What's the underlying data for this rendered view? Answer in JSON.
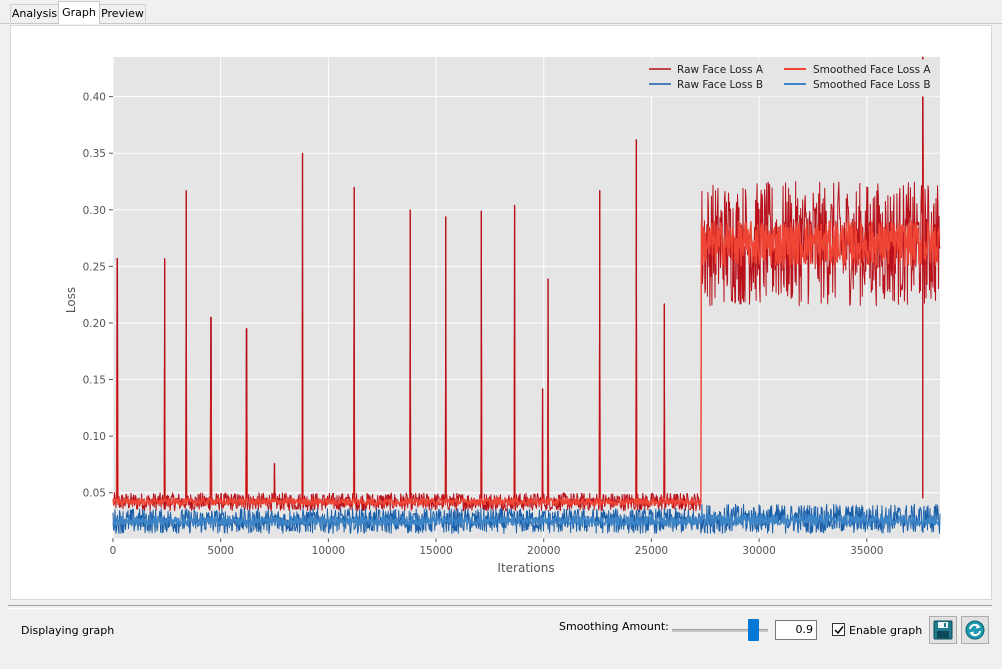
{
  "tabs": [
    {
      "label": "Analysis"
    },
    {
      "label": "Graph",
      "active": true
    },
    {
      "label": "Preview"
    }
  ],
  "status": "Displaying graph",
  "controls": {
    "smoothing_label": "Smoothing Amount:",
    "smoothing_value": "0.9",
    "enable_graph_label": "Enable graph",
    "enable_graph_checked": true,
    "save_icon": "save-icon",
    "refresh_icon": "refresh-icon"
  },
  "chart_data": {
    "type": "line",
    "xlabel": "Iterations",
    "ylabel": "Loss",
    "xlim": [
      0,
      38400
    ],
    "ylim": [
      0.01,
      0.435
    ],
    "xticks": [
      "0",
      "5000",
      "10000",
      "15000",
      "20000",
      "25000",
      "30000",
      "35000"
    ],
    "yticks": [
      "0.05",
      "0.10",
      "0.15",
      "0.20",
      "0.25",
      "0.30",
      "0.35",
      "0.40"
    ],
    "grid": true,
    "legend_position": "top-right",
    "colors": {
      "raw_a": "#b8111b",
      "smooth_a": "#ef4535",
      "raw_b": "#1a5fa8",
      "smooth_b": "#3d85c6",
      "background": "#e5e5e5"
    },
    "series": [
      {
        "name": "Raw Face Loss A",
        "color": "#b8111b",
        "segments": [
          {
            "x": [
              0,
              27300
            ],
            "center": 0.042,
            "spread": 0.008
          },
          {
            "x": [
              27300,
              38400
            ],
            "center": 0.27,
            "spread": 0.055
          }
        ],
        "spikes": [
          {
            "x": 200,
            "y": 0.257
          },
          {
            "x": 2400,
            "y": 0.257
          },
          {
            "x": 3400,
            "y": 0.317
          },
          {
            "x": 4550,
            "y": 0.205
          },
          {
            "x": 6200,
            "y": 0.195
          },
          {
            "x": 7500,
            "y": 0.076
          },
          {
            "x": 8800,
            "y": 0.35
          },
          {
            "x": 11200,
            "y": 0.32
          },
          {
            "x": 13800,
            "y": 0.3
          },
          {
            "x": 15450,
            "y": 0.294
          },
          {
            "x": 17100,
            "y": 0.299
          },
          {
            "x": 18650,
            "y": 0.304
          },
          {
            "x": 19950,
            "y": 0.142
          },
          {
            "x": 20200,
            "y": 0.239
          },
          {
            "x": 22600,
            "y": 0.317
          },
          {
            "x": 24300,
            "y": 0.362
          },
          {
            "x": 25600,
            "y": 0.217
          },
          {
            "x": 37600,
            "y": 0.435
          }
        ]
      },
      {
        "name": "Raw Face Loss B",
        "color": "#1a5fa8",
        "segments": [
          {
            "x": [
              0,
              27300
            ],
            "center": 0.025,
            "spread": 0.011
          },
          {
            "x": [
              27300,
              38400
            ],
            "center": 0.027,
            "spread": 0.013
          }
        ]
      },
      {
        "name": "Smoothed Face Loss A",
        "color": "#ef4535",
        "segments": [
          {
            "x": [
              0,
              27300
            ],
            "center": 0.042,
            "spread": 0.003
          },
          {
            "x": [
              27300,
              38400
            ],
            "center": 0.27,
            "spread": 0.02
          }
        ]
      },
      {
        "name": "Smoothed Face Loss B",
        "color": "#3d85c6",
        "segments": [
          {
            "x": [
              0,
              27300
            ],
            "center": 0.025,
            "spread": 0.004
          },
          {
            "x": [
              27300,
              38400
            ],
            "center": 0.026,
            "spread": 0.005
          }
        ]
      }
    ]
  }
}
